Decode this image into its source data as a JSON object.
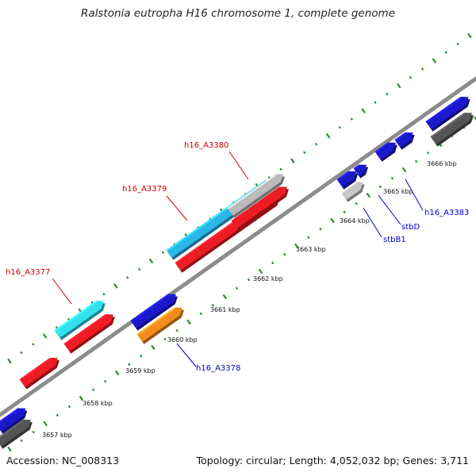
{
  "title": "Ralstonia eutropha H16 chromosome 1, complete genome",
  "footer": {
    "accession": "Accession: NC_008313",
    "summary": "Topology: circular; Length: 4,052,032 bp; Genes: 3,711"
  },
  "colors": {
    "backbone": "#8c8c8c",
    "tick_dot": "#2e8b2e",
    "forward_label": "#cc0000",
    "reverse_label": "#0000cc",
    "label_line_forward": "#cc0000",
    "label_line_reverse": "#0000cc"
  },
  "kbp_labels": [
    "3657 kbp",
    "3658 kbp",
    "3659 kbp",
    "3660 kbp",
    "3661 kbp",
    "3662 kbp",
    "3663 kbp",
    "3664 kbp",
    "3665 kbp",
    "3666 kbp"
  ],
  "gene_labels": [
    {
      "name": "h16_A3380",
      "strand": "forward"
    },
    {
      "name": "h16_A3379",
      "strand": "forward"
    },
    {
      "name": "h16_A3377",
      "strand": "forward"
    },
    {
      "name": "h16_A3378",
      "strand": "reverse"
    },
    {
      "name": "stbD",
      "strand": "reverse"
    },
    {
      "name": "stbB1",
      "strand": "reverse"
    },
    {
      "name": "h16_A3383",
      "strand": "reverse"
    }
  ],
  "features": [
    {
      "name": "cyan-a3377",
      "color": "#33e0ee"
    },
    {
      "name": "red-a3377",
      "color": "#ee1c24"
    },
    {
      "name": "red-lower-left",
      "color": "#ee1c24"
    },
    {
      "name": "blue-lower-left",
      "color": "#1a1acc"
    },
    {
      "name": "gray-lower-left",
      "color": "#555555"
    },
    {
      "name": "blue-a3378-upper",
      "color": "#1a1acc"
    },
    {
      "name": "orange-a3378",
      "color": "#f28c1c"
    },
    {
      "name": "cyan-a3379",
      "color": "#2ab8e8"
    },
    {
      "name": "red-a3379",
      "color": "#ee1c24"
    },
    {
      "name": "red-a3380",
      "color": "#ee1c24"
    },
    {
      "name": "gray-a3380",
      "color": "#bbbbbb"
    },
    {
      "name": "blue-small-1",
      "color": "#1a1acc"
    },
    {
      "name": "blue-small-2",
      "color": "#1a1acc"
    },
    {
      "name": "gray-stbB1",
      "color": "#c8c8c8"
    },
    {
      "name": "blue-stbD-1",
      "color": "#1a1acc"
    },
    {
      "name": "blue-stbD-2",
      "color": "#1a1acc"
    },
    {
      "name": "blue-a3383",
      "color": "#1a1acc"
    },
    {
      "name": "gray-a3383",
      "color": "#555555"
    }
  ]
}
